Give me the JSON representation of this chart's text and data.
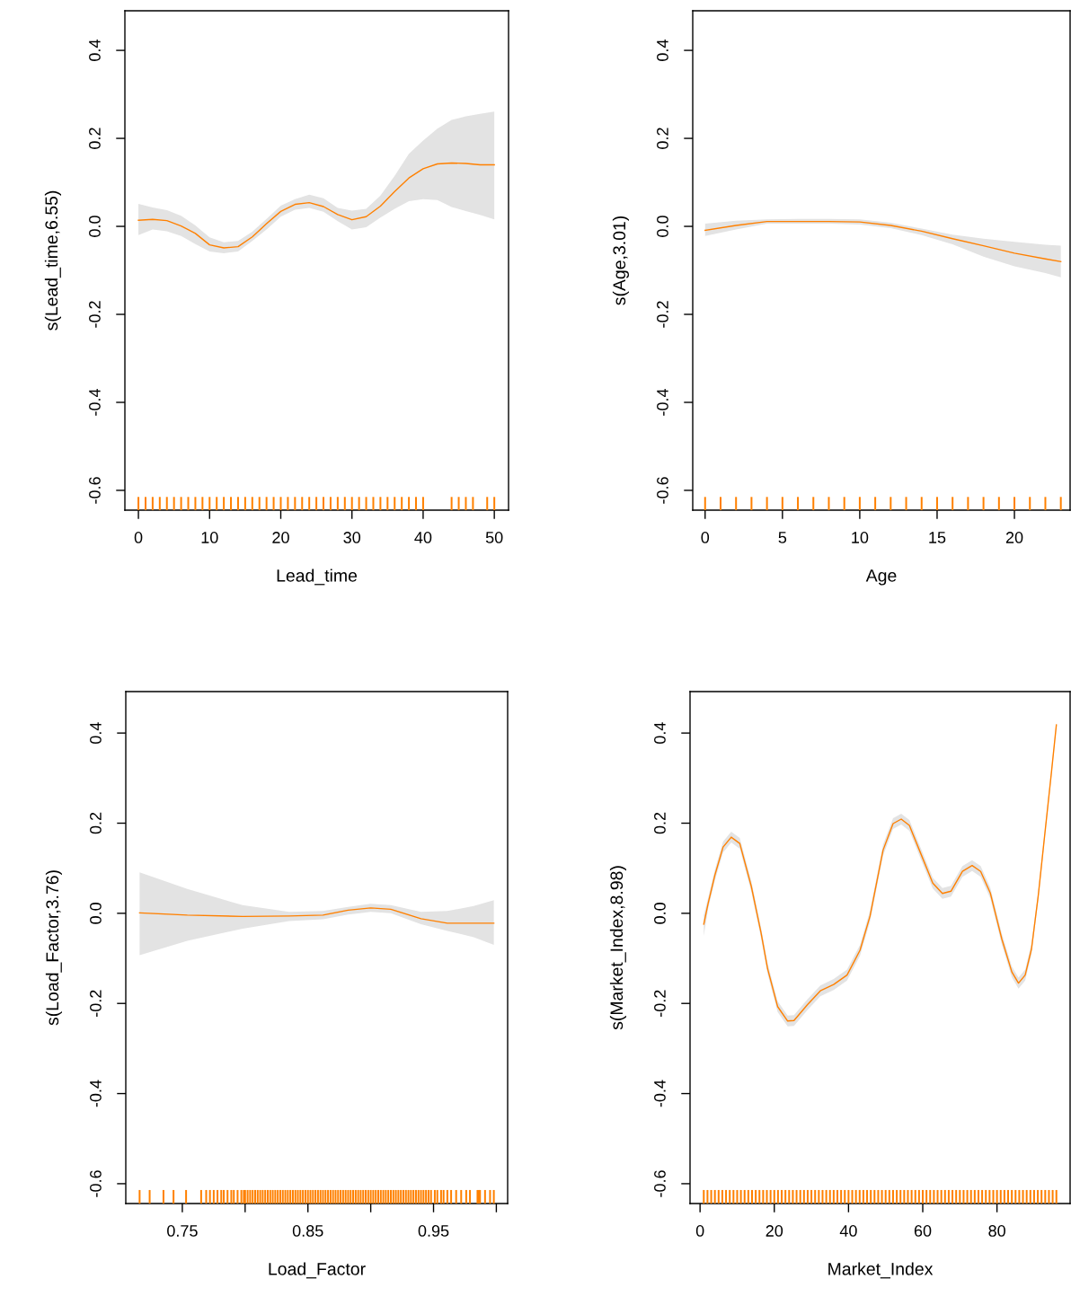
{
  "chart_data": [
    {
      "type": "line",
      "xlabel": "Lead_time",
      "ylabel": "s(Lead_time,6.55)",
      "grid": false,
      "xlim": [
        -1.9,
        52.0
      ],
      "ylim": [
        -0.645,
        0.49
      ],
      "xticks": [
        0,
        10,
        20,
        30,
        40,
        50
      ],
      "yticks": [
        {
          "value": -0.6,
          "label": "-0.6"
        },
        {
          "value": -0.4,
          "label": "-0.4"
        },
        {
          "value": -0.2,
          "label": "-0.2"
        },
        {
          "value": 0.0,
          "label": "0.0"
        },
        {
          "value": 0.2,
          "label": "0.2"
        },
        {
          "value": 0.4,
          "label": "0.4"
        }
      ],
      "series": [
        {
          "type": "line",
          "color": "#ff8000",
          "x": [
            0,
            2,
            4,
            6,
            8,
            10,
            12,
            14,
            16,
            18,
            20,
            22,
            24,
            26,
            28,
            30,
            32,
            34,
            36,
            38,
            40,
            42,
            44,
            46,
            48,
            50
          ],
          "values": [
            0.014,
            0.016,
            0.013,
            0.001,
            -0.016,
            -0.042,
            -0.049,
            -0.046,
            -0.024,
            0.006,
            0.034,
            0.05,
            0.054,
            0.045,
            0.027,
            0.015,
            0.022,
            0.046,
            0.079,
            0.11,
            0.131,
            0.142,
            0.144,
            0.143,
            0.14,
            0.14
          ],
          "lower": [
            -0.02,
            -0.007,
            -0.011,
            -0.022,
            -0.04,
            -0.057,
            -0.061,
            -0.057,
            -0.033,
            -0.007,
            0.022,
            0.038,
            0.042,
            0.033,
            0.012,
            -0.007,
            -0.002,
            0.02,
            0.04,
            0.057,
            0.062,
            0.06,
            0.044,
            0.035,
            0.026,
            0.016
          ],
          "upper": [
            0.051,
            0.043,
            0.037,
            0.024,
            0.002,
            -0.025,
            -0.036,
            -0.033,
            -0.012,
            0.017,
            0.047,
            0.062,
            0.072,
            0.064,
            0.042,
            0.036,
            0.04,
            0.07,
            0.115,
            0.165,
            0.195,
            0.222,
            0.242,
            0.25,
            0.256,
            0.261
          ]
        },
        {
          "type": "bar",
          "color": "#ff8000",
          "x": [
            0,
            1,
            2,
            3,
            4,
            5,
            6,
            7,
            8,
            9,
            10,
            11,
            12,
            13,
            14,
            15,
            16,
            17,
            18,
            19,
            20,
            21,
            22,
            23,
            24,
            25,
            26,
            27,
            28,
            29,
            30,
            31,
            32,
            33,
            34,
            35,
            36,
            37,
            38,
            39,
            40,
            44,
            45,
            46,
            47,
            49,
            50
          ],
          "base": [
            -0.645,
            -0.645,
            -0.645,
            -0.645,
            -0.645,
            -0.645,
            -0.645,
            -0.645,
            -0.645,
            -0.645,
            -0.645,
            -0.645,
            -0.645,
            -0.645,
            -0.645,
            -0.645,
            -0.645,
            -0.645,
            -0.645,
            -0.645,
            -0.645,
            -0.645,
            -0.645,
            -0.645,
            -0.645,
            -0.645,
            -0.645,
            -0.645,
            -0.645,
            -0.645,
            -0.645,
            -0.645,
            -0.645,
            -0.645,
            -0.645,
            -0.645,
            -0.645,
            -0.645,
            -0.645,
            -0.645,
            -0.645,
            -0.645,
            -0.645,
            -0.645,
            -0.645,
            -0.645,
            -0.645
          ],
          "values": [
            0.03,
            0.03,
            0.03,
            0.03,
            0.03,
            0.03,
            0.03,
            0.03,
            0.03,
            0.03,
            0.03,
            0.03,
            0.03,
            0.03,
            0.03,
            0.03,
            0.03,
            0.03,
            0.03,
            0.03,
            0.03,
            0.03,
            0.03,
            0.03,
            0.03,
            0.03,
            0.03,
            0.03,
            0.03,
            0.03,
            0.03,
            0.03,
            0.03,
            0.03,
            0.03,
            0.03,
            0.03,
            0.03,
            0.03,
            0.03,
            0.03,
            0.03,
            0.03,
            0.03,
            0.03,
            0.03,
            0.03
          ]
        }
      ]
    },
    {
      "type": "line",
      "xlabel": "Age",
      "ylabel": "s(Age,3.01)",
      "grid": false,
      "xlim": [
        -0.8,
        23.6
      ],
      "ylim": [
        -0.645,
        0.49
      ],
      "xticks": [
        0,
        5,
        10,
        15,
        20
      ],
      "yticks": [
        {
          "value": -0.6,
          "label": "-0.6"
        },
        {
          "value": -0.4,
          "label": "-0.4"
        },
        {
          "value": -0.2,
          "label": "-0.2"
        },
        {
          "value": 0.0,
          "label": "0.0"
        },
        {
          "value": 0.2,
          "label": "0.2"
        },
        {
          "value": 0.4,
          "label": "0.4"
        }
      ],
      "series": [
        {
          "type": "line",
          "color": "#ff8000",
          "x": [
            0,
            2,
            4,
            6,
            8,
            10,
            12,
            14,
            16,
            18,
            20,
            22,
            23
          ],
          "values": [
            -0.009,
            0.002,
            0.011,
            0.011,
            0.011,
            0.01,
            0.002,
            -0.011,
            -0.028,
            -0.044,
            -0.061,
            -0.074,
            -0.08
          ],
          "lower": [
            -0.022,
            -0.007,
            0.006,
            0.006,
            0.006,
            0.004,
            -0.004,
            -0.02,
            -0.041,
            -0.069,
            -0.091,
            -0.106,
            -0.116
          ],
          "upper": [
            0.006,
            0.013,
            0.016,
            0.017,
            0.017,
            0.016,
            0.008,
            -0.005,
            -0.019,
            -0.028,
            -0.035,
            -0.042,
            -0.044
          ]
        },
        {
          "type": "bar",
          "color": "#ff8000",
          "x": [
            0,
            1,
            2,
            3,
            4,
            5,
            6,
            7,
            8,
            9,
            10,
            11,
            12,
            13,
            14,
            15,
            16,
            17,
            18,
            19,
            20,
            21,
            22,
            23
          ],
          "base": [
            -0.645,
            -0.645,
            -0.645,
            -0.645,
            -0.645,
            -0.645,
            -0.645,
            -0.645,
            -0.645,
            -0.645,
            -0.645,
            -0.645,
            -0.645,
            -0.645,
            -0.645,
            -0.645,
            -0.645,
            -0.645,
            -0.645,
            -0.645,
            -0.645,
            -0.645,
            -0.645,
            -0.645
          ],
          "values": [
            0.03,
            0.03,
            0.03,
            0.03,
            0.03,
            0.03,
            0.03,
            0.03,
            0.03,
            0.03,
            0.03,
            0.03,
            0.03,
            0.03,
            0.03,
            0.03,
            0.03,
            0.03,
            0.03,
            0.03,
            0.03,
            0.03,
            0.03,
            0.03
          ]
        }
      ]
    },
    {
      "type": "line",
      "xlabel": "Load_Factor",
      "ylabel": "s(Load_Factor,3.76)",
      "grid": false,
      "xlim": [
        0.705,
        1.009
      ],
      "ylim": [
        -0.644,
        0.492
      ],
      "xticks": [
        0.75,
        {
          "value": 0.8,
          "label": null
        },
        0.85,
        {
          "value": 0.9,
          "label": null
        },
        0.95,
        {
          "value": 1.0,
          "label": null
        }
      ],
      "yticks": [
        {
          "value": -0.6,
          "label": "-0.6"
        },
        {
          "value": -0.4,
          "label": "-0.4"
        },
        {
          "value": -0.2,
          "label": "-0.2"
        },
        {
          "value": 0.0,
          "label": "0.0"
        },
        {
          "value": 0.2,
          "label": "0.2"
        },
        {
          "value": 0.4,
          "label": "0.4"
        }
      ],
      "series": [
        {
          "type": "line",
          "color": "#ff8000",
          "x": [
            0.716,
            0.754,
            0.798,
            0.835,
            0.862,
            0.882,
            0.9,
            0.916,
            0.94,
            0.961,
            0.982,
            0.998
          ],
          "values": [
            0.001,
            -0.004,
            -0.007,
            -0.006,
            -0.004,
            0.007,
            0.012,
            0.009,
            -0.012,
            -0.022,
            -0.022,
            -0.022
          ],
          "lower": [
            -0.093,
            -0.061,
            -0.034,
            -0.017,
            -0.013,
            -0.003,
            0.003,
            0.0,
            -0.024,
            -0.039,
            -0.053,
            -0.07
          ],
          "upper": [
            0.091,
            0.054,
            0.018,
            0.003,
            0.005,
            0.014,
            0.021,
            0.018,
            0.003,
            0.005,
            0.016,
            0.029
          ]
        },
        {
          "type": "bar",
          "color": "#ff8000",
          "x": [
            0.716,
            0.724,
            0.735,
            0.743,
            0.753,
            0.765,
            0.769,
            0.772,
            0.775,
            0.778,
            0.781,
            0.783,
            0.786,
            0.789,
            0.791,
            0.794,
            0.797,
            0.799,
            0.8,
            0.802,
            0.804,
            0.806,
            0.808,
            0.81,
            0.812,
            0.814,
            0.816,
            0.818,
            0.82,
            0.822,
            0.824,
            0.826,
            0.828,
            0.83,
            0.832,
            0.834,
            0.836,
            0.838,
            0.84,
            0.842,
            0.844,
            0.846,
            0.848,
            0.85,
            0.852,
            0.854,
            0.856,
            0.858,
            0.86,
            0.862,
            0.864,
            0.866,
            0.868,
            0.87,
            0.872,
            0.874,
            0.876,
            0.878,
            0.88,
            0.882,
            0.884,
            0.886,
            0.888,
            0.89,
            0.892,
            0.894,
            0.896,
            0.898,
            0.9,
            0.902,
            0.904,
            0.906,
            0.908,
            0.91,
            0.912,
            0.914,
            0.916,
            0.918,
            0.92,
            0.922,
            0.924,
            0.926,
            0.928,
            0.93,
            0.932,
            0.934,
            0.936,
            0.938,
            0.94,
            0.942,
            0.944,
            0.946,
            0.948,
            0.951,
            0.953,
            0.956,
            0.958,
            0.961,
            0.964,
            0.968,
            0.972,
            0.976,
            0.979,
            0.985,
            0.986,
            0.987,
            0.991,
            0.995,
            0.998
          ],
          "base": [
            -0.644,
            -0.644,
            -0.644,
            -0.644,
            -0.644,
            -0.644,
            -0.644,
            -0.644,
            -0.644,
            -0.644,
            -0.644,
            -0.644,
            -0.644,
            -0.644,
            -0.644,
            -0.644,
            -0.644,
            -0.644,
            -0.644,
            -0.644,
            -0.644,
            -0.644,
            -0.644,
            -0.644,
            -0.644,
            -0.644,
            -0.644,
            -0.644,
            -0.644,
            -0.644,
            -0.644,
            -0.644,
            -0.644,
            -0.644,
            -0.644,
            -0.644,
            -0.644,
            -0.644,
            -0.644,
            -0.644,
            -0.644,
            -0.644,
            -0.644,
            -0.644,
            -0.644,
            -0.644,
            -0.644,
            -0.644,
            -0.644,
            -0.644,
            -0.644,
            -0.644,
            -0.644,
            -0.644,
            -0.644,
            -0.644,
            -0.644,
            -0.644,
            -0.644,
            -0.644,
            -0.644,
            -0.644,
            -0.644,
            -0.644,
            -0.644,
            -0.644,
            -0.644,
            -0.644,
            -0.644,
            -0.644,
            -0.644,
            -0.644,
            -0.644,
            -0.644,
            -0.644,
            -0.644,
            -0.644,
            -0.644,
            -0.644,
            -0.644,
            -0.644,
            -0.644,
            -0.644,
            -0.644,
            -0.644,
            -0.644,
            -0.644,
            -0.644,
            -0.644,
            -0.644,
            -0.644,
            -0.644,
            -0.644,
            -0.644,
            -0.644,
            -0.644,
            -0.644,
            -0.644,
            -0.644,
            -0.644,
            -0.644,
            -0.644,
            -0.644,
            -0.644,
            -0.644,
            -0.644,
            -0.644,
            -0.644,
            -0.644
          ],
          "values": [
            0.03,
            0.03,
            0.03,
            0.03,
            0.03,
            0.03,
            0.03,
            0.03,
            0.03,
            0.03,
            0.03,
            0.03,
            0.03,
            0.03,
            0.03,
            0.03,
            0.03,
            0.03,
            0.03,
            0.03,
            0.03,
            0.03,
            0.03,
            0.03,
            0.03,
            0.03,
            0.03,
            0.03,
            0.03,
            0.03,
            0.03,
            0.03,
            0.03,
            0.03,
            0.03,
            0.03,
            0.03,
            0.03,
            0.03,
            0.03,
            0.03,
            0.03,
            0.03,
            0.03,
            0.03,
            0.03,
            0.03,
            0.03,
            0.03,
            0.03,
            0.03,
            0.03,
            0.03,
            0.03,
            0.03,
            0.03,
            0.03,
            0.03,
            0.03,
            0.03,
            0.03,
            0.03,
            0.03,
            0.03,
            0.03,
            0.03,
            0.03,
            0.03,
            0.03,
            0.03,
            0.03,
            0.03,
            0.03,
            0.03,
            0.03,
            0.03,
            0.03,
            0.03,
            0.03,
            0.03,
            0.03,
            0.03,
            0.03,
            0.03,
            0.03,
            0.03,
            0.03,
            0.03,
            0.03,
            0.03,
            0.03,
            0.03,
            0.03,
            0.03,
            0.03,
            0.03,
            0.03,
            0.03,
            0.03,
            0.03,
            0.03,
            0.03,
            0.03,
            0.03,
            0.03,
            0.03,
            0.03,
            0.03,
            0.03
          ]
        }
      ]
    },
    {
      "type": "line",
      "xlabel": "Market_Index",
      "ylabel": "s(Market_Index,8.98)",
      "grid": false,
      "xlim": [
        -2.7,
        99.7
      ],
      "ylim": [
        -0.644,
        0.492
      ],
      "xticks": [
        0,
        20,
        40,
        60,
        80
      ],
      "yticks": [
        {
          "value": -0.6,
          "label": "-0.6"
        },
        {
          "value": -0.4,
          "label": "-0.4"
        },
        {
          "value": -0.2,
          "label": "-0.2"
        },
        {
          "value": 0.0,
          "label": "0.0"
        },
        {
          "value": 0.2,
          "label": "0.2"
        },
        {
          "value": 0.4,
          "label": "0.4"
        }
      ],
      "series": [
        {
          "type": "line",
          "color": "#ff8000",
          "x": [
            1,
            2.2,
            4,
            6.2,
            8.4,
            10.7,
            13.8,
            16.4,
            18.2,
            20.9,
            23.6,
            25.3,
            28.9,
            32.4,
            36,
            39.6,
            43.1,
            45.8,
            49.3,
            52,
            54.2,
            56.4,
            59.1,
            62.7,
            65.3,
            67.6,
            70.7,
            73.3,
            75.6,
            78.2,
            81.3,
            84,
            85.8,
            87.6,
            89.3,
            91.1,
            92.9,
            94.7,
            96
          ],
          "values": [
            -0.024,
            0.023,
            0.085,
            0.147,
            0.169,
            0.155,
            0.06,
            -0.042,
            -0.123,
            -0.207,
            -0.239,
            -0.238,
            -0.203,
            -0.172,
            -0.158,
            -0.137,
            -0.082,
            -0.006,
            0.14,
            0.199,
            0.209,
            0.195,
            0.14,
            0.067,
            0.044,
            0.049,
            0.093,
            0.106,
            0.093,
            0.045,
            -0.057,
            -0.13,
            -0.155,
            -0.137,
            -0.079,
            0.038,
            0.177,
            0.315,
            0.418
          ],
          "lower": [
            -0.05,
            0.011,
            0.073,
            0.135,
            0.157,
            0.143,
            0.048,
            -0.054,
            -0.135,
            -0.219,
            -0.251,
            -0.25,
            -0.215,
            -0.184,
            -0.17,
            -0.149,
            -0.094,
            -0.018,
            0.128,
            0.187,
            0.197,
            0.183,
            0.128,
            0.055,
            0.032,
            0.037,
            0.081,
            0.094,
            0.081,
            0.033,
            -0.069,
            -0.142,
            -0.167,
            -0.149,
            -0.091,
            0.028,
            0.169,
            0.308,
            0.414
          ],
          "upper": [
            -0.004,
            0.035,
            0.097,
            0.159,
            0.181,
            0.167,
            0.072,
            -0.03,
            -0.111,
            -0.195,
            -0.227,
            -0.226,
            -0.191,
            -0.16,
            -0.146,
            -0.125,
            -0.07,
            0.006,
            0.152,
            0.211,
            0.221,
            0.207,
            0.152,
            0.079,
            0.056,
            0.061,
            0.105,
            0.118,
            0.105,
            0.057,
            -0.045,
            -0.118,
            -0.143,
            -0.125,
            -0.067,
            0.048,
            0.185,
            0.322,
            0.422
          ]
        },
        {
          "type": "bar",
          "color": "#ff8000",
          "x": [
            1,
            2,
            3,
            4,
            5,
            6,
            7,
            8,
            9,
            10,
            11,
            12,
            13,
            14,
            15,
            16,
            17,
            18,
            19,
            20,
            21,
            22,
            23,
            24,
            25,
            26,
            27,
            28,
            29,
            30,
            31,
            32,
            33,
            34,
            35,
            36,
            37,
            38,
            39,
            40,
            41,
            42,
            43,
            44,
            45,
            46,
            47,
            48,
            49,
            50,
            51,
            52,
            53,
            54,
            55,
            56,
            57,
            58,
            59,
            60,
            61,
            62,
            63,
            64,
            65,
            66,
            67,
            68,
            69,
            70,
            71,
            72,
            73,
            74,
            75,
            76,
            77,
            78,
            79,
            80,
            81,
            82,
            83,
            84,
            85,
            86,
            87,
            88,
            89,
            90,
            91,
            92,
            93,
            94,
            95,
            96
          ],
          "base": [
            -0.644,
            -0.644,
            -0.644,
            -0.644,
            -0.644,
            -0.644,
            -0.644,
            -0.644,
            -0.644,
            -0.644,
            -0.644,
            -0.644,
            -0.644,
            -0.644,
            -0.644,
            -0.644,
            -0.644,
            -0.644,
            -0.644,
            -0.644,
            -0.644,
            -0.644,
            -0.644,
            -0.644,
            -0.644,
            -0.644,
            -0.644,
            -0.644,
            -0.644,
            -0.644,
            -0.644,
            -0.644,
            -0.644,
            -0.644,
            -0.644,
            -0.644,
            -0.644,
            -0.644,
            -0.644,
            -0.644,
            -0.644,
            -0.644,
            -0.644,
            -0.644,
            -0.644,
            -0.644,
            -0.644,
            -0.644,
            -0.644,
            -0.644,
            -0.644,
            -0.644,
            -0.644,
            -0.644,
            -0.644,
            -0.644,
            -0.644,
            -0.644,
            -0.644,
            -0.644,
            -0.644,
            -0.644,
            -0.644,
            -0.644,
            -0.644,
            -0.644,
            -0.644,
            -0.644,
            -0.644,
            -0.644,
            -0.644,
            -0.644,
            -0.644,
            -0.644,
            -0.644,
            -0.644,
            -0.644,
            -0.644,
            -0.644,
            -0.644,
            -0.644,
            -0.644,
            -0.644,
            -0.644,
            -0.644,
            -0.644,
            -0.644,
            -0.644,
            -0.644,
            -0.644,
            -0.644,
            -0.644,
            -0.644,
            -0.644,
            -0.644,
            -0.644
          ],
          "values": [
            0.03,
            0.03,
            0.03,
            0.03,
            0.03,
            0.03,
            0.03,
            0.03,
            0.03,
            0.03,
            0.03,
            0.03,
            0.03,
            0.03,
            0.03,
            0.03,
            0.03,
            0.03,
            0.03,
            0.03,
            0.03,
            0.03,
            0.03,
            0.03,
            0.03,
            0.03,
            0.03,
            0.03,
            0.03,
            0.03,
            0.03,
            0.03,
            0.03,
            0.03,
            0.03,
            0.03,
            0.03,
            0.03,
            0.03,
            0.03,
            0.03,
            0.03,
            0.03,
            0.03,
            0.03,
            0.03,
            0.03,
            0.03,
            0.03,
            0.03,
            0.03,
            0.03,
            0.03,
            0.03,
            0.03,
            0.03,
            0.03,
            0.03,
            0.03,
            0.03,
            0.03,
            0.03,
            0.03,
            0.03,
            0.03,
            0.03,
            0.03,
            0.03,
            0.03,
            0.03,
            0.03,
            0.03,
            0.03,
            0.03,
            0.03,
            0.03,
            0.03,
            0.03,
            0.03,
            0.03,
            0.03,
            0.03,
            0.03,
            0.03,
            0.03,
            0.03,
            0.03,
            0.03,
            0.03,
            0.03,
            0.03,
            0.03,
            0.03,
            0.03,
            0.03,
            0.03
          ]
        }
      ]
    }
  ]
}
